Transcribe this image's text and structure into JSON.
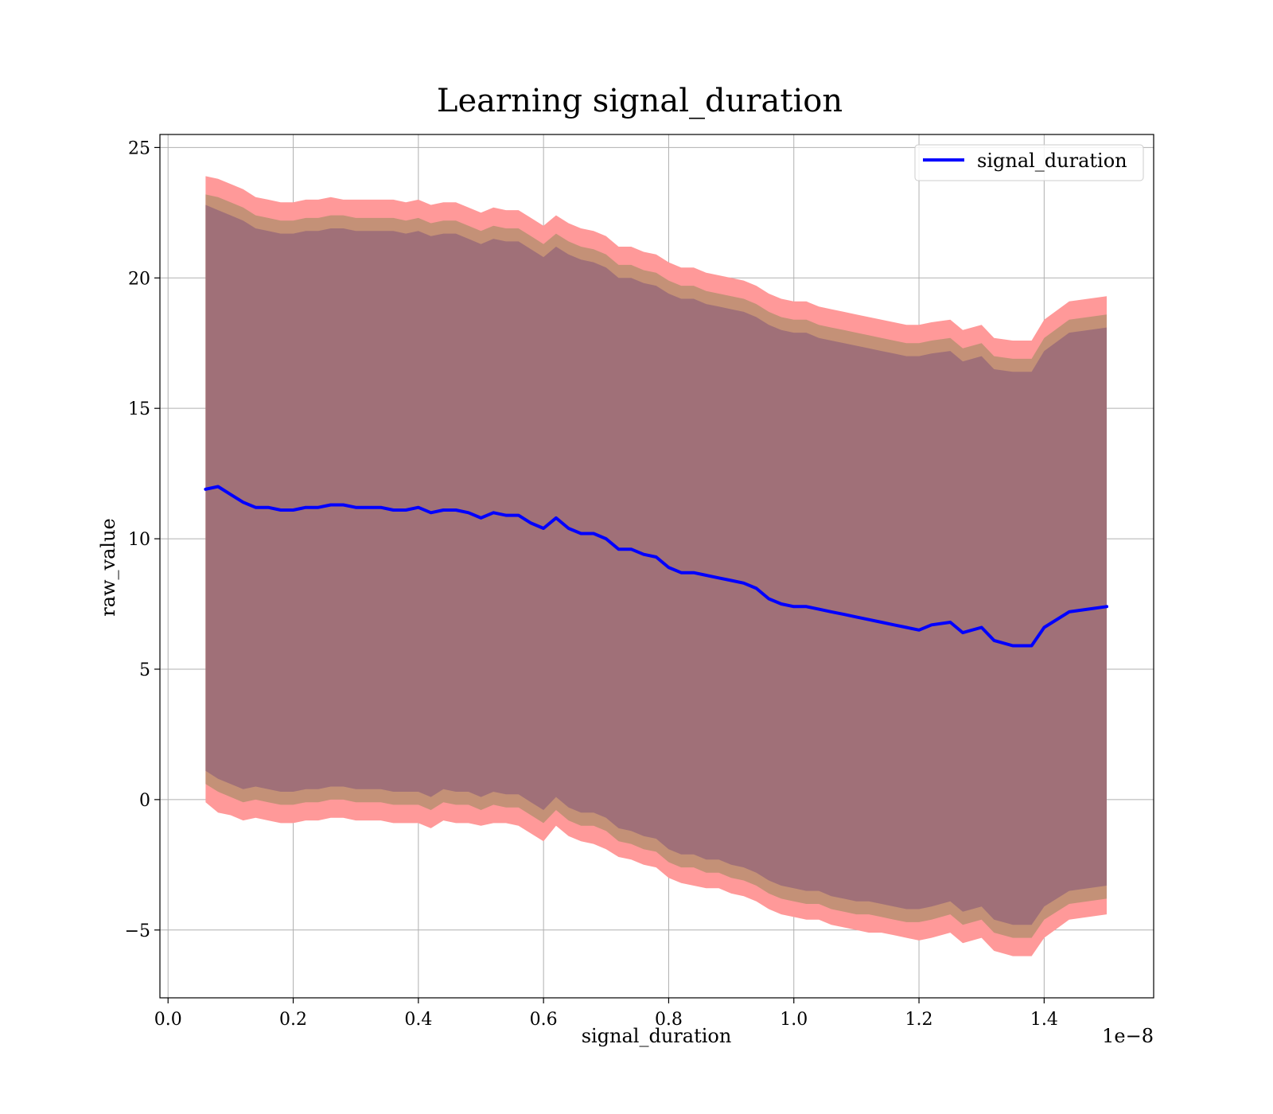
{
  "chart_data": {
    "type": "area",
    "title": "Learning signal_duration",
    "xlabel": "signal_duration",
    "ylabel": "raw_value",
    "x_scale_label": "1e−8",
    "xlim": [
      -0.013,
      1.575
    ],
    "ylim": [
      -7.6,
      25.5
    ],
    "x_ticks": [
      0.0,
      0.2,
      0.4,
      0.6,
      0.8,
      1.0,
      1.2,
      1.4
    ],
    "x_tick_labels": [
      "0.0",
      "0.2",
      "0.4",
      "0.6",
      "0.8",
      "1.0",
      "1.2",
      "1.4"
    ],
    "y_ticks": [
      -5,
      0,
      5,
      10,
      15,
      20,
      25
    ],
    "y_tick_labels": [
      "−5",
      "0",
      "5",
      "10",
      "15",
      "20",
      "25"
    ],
    "grid": true,
    "legend_position": "top-right",
    "colors": {
      "line": "#0000ff",
      "band_outer": "#ff9999",
      "band_middle": "#c49177",
      "band_inner": "#a07078",
      "grid": "#b0b0b0"
    },
    "series": [
      {
        "name": "signal_duration",
        "x": [
          0.06,
          0.08,
          0.1,
          0.12,
          0.14,
          0.16,
          0.18,
          0.2,
          0.22,
          0.24,
          0.26,
          0.28,
          0.3,
          0.32,
          0.34,
          0.36,
          0.38,
          0.4,
          0.42,
          0.44,
          0.46,
          0.48,
          0.5,
          0.52,
          0.54,
          0.56,
          0.58,
          0.6,
          0.62,
          0.64,
          0.66,
          0.68,
          0.7,
          0.72,
          0.74,
          0.76,
          0.78,
          0.8,
          0.82,
          0.84,
          0.86,
          0.88,
          0.9,
          0.92,
          0.94,
          0.96,
          0.98,
          1.0,
          1.02,
          1.04,
          1.06,
          1.08,
          1.1,
          1.12,
          1.14,
          1.16,
          1.18,
          1.2,
          1.22,
          1.25,
          1.27,
          1.3,
          1.32,
          1.35,
          1.38,
          1.4,
          1.44,
          1.5
        ],
        "y": [
          11.9,
          12.0,
          11.7,
          11.4,
          11.2,
          11.2,
          11.1,
          11.1,
          11.2,
          11.2,
          11.3,
          11.3,
          11.2,
          11.2,
          11.2,
          11.1,
          11.1,
          11.2,
          11.0,
          11.1,
          11.1,
          11.0,
          10.8,
          11.0,
          10.9,
          10.9,
          10.6,
          10.4,
          10.8,
          10.4,
          10.2,
          10.2,
          10.0,
          9.6,
          9.6,
          9.4,
          9.3,
          8.9,
          8.7,
          8.7,
          8.6,
          8.5,
          8.4,
          8.3,
          8.1,
          7.7,
          7.5,
          7.4,
          7.4,
          7.3,
          7.2,
          7.1,
          7.0,
          6.9,
          6.8,
          6.7,
          6.6,
          6.5,
          6.7,
          6.8,
          6.4,
          6.6,
          6.1,
          5.9,
          5.9,
          6.6,
          7.2,
          7.4
        ]
      }
    ],
    "bands": [
      {
        "role": "outer",
        "lower": [
          -0.1,
          -0.5,
          -0.6,
          -0.8,
          -0.7,
          -0.8,
          -0.9,
          -0.9,
          -0.8,
          -0.8,
          -0.7,
          -0.7,
          -0.8,
          -0.8,
          -0.8,
          -0.9,
          -0.9,
          -0.9,
          -1.1,
          -0.8,
          -0.9,
          -0.9,
          -1.0,
          -0.9,
          -0.9,
          -1.0,
          -1.3,
          -1.6,
          -1.0,
          -1.4,
          -1.6,
          -1.7,
          -1.9,
          -2.2,
          -2.3,
          -2.5,
          -2.6,
          -3.0,
          -3.2,
          -3.3,
          -3.4,
          -3.4,
          -3.6,
          -3.7,
          -3.9,
          -4.2,
          -4.4,
          -4.5,
          -4.6,
          -4.6,
          -4.8,
          -4.9,
          -5.0,
          -5.1,
          -5.1,
          -5.2,
          -5.3,
          -5.4,
          -5.3,
          -5.1,
          -5.5,
          -5.3,
          -5.8,
          -6.0,
          -6.0,
          -5.3,
          -4.6,
          -4.4
        ],
        "upper": [
          23.9,
          23.8,
          23.6,
          23.4,
          23.1,
          23.0,
          22.9,
          22.9,
          23.0,
          23.0,
          23.1,
          23.0,
          23.0,
          23.0,
          23.0,
          23.0,
          22.9,
          23.0,
          22.8,
          22.9,
          22.9,
          22.7,
          22.5,
          22.7,
          22.6,
          22.6,
          22.3,
          22.0,
          22.4,
          22.1,
          21.9,
          21.8,
          21.6,
          21.2,
          21.2,
          21.0,
          20.9,
          20.6,
          20.4,
          20.4,
          20.2,
          20.1,
          20.0,
          19.9,
          19.7,
          19.4,
          19.2,
          19.1,
          19.1,
          18.9,
          18.8,
          18.7,
          18.6,
          18.5,
          18.4,
          18.3,
          18.2,
          18.2,
          18.3,
          18.4,
          18.0,
          18.2,
          17.7,
          17.6,
          17.6,
          18.4,
          19.1,
          19.3
        ]
      },
      {
        "role": "middle",
        "lower": [
          0.6,
          0.3,
          0.1,
          -0.1,
          0.0,
          -0.1,
          -0.2,
          -0.2,
          -0.1,
          -0.1,
          0.0,
          0.0,
          -0.1,
          -0.1,
          -0.1,
          -0.2,
          -0.2,
          -0.2,
          -0.4,
          -0.1,
          -0.2,
          -0.2,
          -0.4,
          -0.2,
          -0.3,
          -0.3,
          -0.6,
          -0.9,
          -0.4,
          -0.8,
          -1.0,
          -1.0,
          -1.2,
          -1.6,
          -1.7,
          -1.9,
          -2.0,
          -2.4,
          -2.6,
          -2.6,
          -2.8,
          -2.8,
          -3.0,
          -3.1,
          -3.3,
          -3.6,
          -3.8,
          -3.9,
          -4.0,
          -4.0,
          -4.2,
          -4.3,
          -4.4,
          -4.4,
          -4.5,
          -4.6,
          -4.7,
          -4.7,
          -4.6,
          -4.4,
          -4.8,
          -4.6,
          -5.1,
          -5.3,
          -5.3,
          -4.6,
          -4.0,
          -3.8
        ],
        "upper": [
          23.2,
          23.1,
          22.9,
          22.7,
          22.4,
          22.3,
          22.2,
          22.2,
          22.3,
          22.3,
          22.4,
          22.4,
          22.3,
          22.3,
          22.3,
          22.3,
          22.2,
          22.3,
          22.1,
          22.2,
          22.2,
          22.0,
          21.8,
          22.0,
          21.9,
          21.9,
          21.6,
          21.3,
          21.7,
          21.4,
          21.2,
          21.1,
          20.9,
          20.5,
          20.5,
          20.3,
          20.2,
          19.9,
          19.7,
          19.7,
          19.5,
          19.4,
          19.3,
          19.2,
          19.0,
          18.7,
          18.5,
          18.4,
          18.4,
          18.2,
          18.1,
          18.0,
          17.9,
          17.8,
          17.7,
          17.6,
          17.5,
          17.5,
          17.6,
          17.7,
          17.3,
          17.5,
          17.0,
          16.9,
          16.9,
          17.7,
          18.4,
          18.6
        ]
      },
      {
        "role": "inner",
        "lower": [
          1.1,
          0.8,
          0.6,
          0.4,
          0.5,
          0.4,
          0.3,
          0.3,
          0.4,
          0.4,
          0.5,
          0.5,
          0.4,
          0.4,
          0.4,
          0.3,
          0.3,
          0.3,
          0.1,
          0.4,
          0.3,
          0.3,
          0.1,
          0.3,
          0.2,
          0.2,
          -0.1,
          -0.4,
          0.1,
          -0.3,
          -0.5,
          -0.5,
          -0.7,
          -1.1,
          -1.2,
          -1.4,
          -1.5,
          -1.9,
          -2.1,
          -2.1,
          -2.3,
          -2.3,
          -2.5,
          -2.6,
          -2.8,
          -3.1,
          -3.3,
          -3.4,
          -3.5,
          -3.5,
          -3.7,
          -3.8,
          -3.9,
          -3.9,
          -4.0,
          -4.1,
          -4.2,
          -4.2,
          -4.1,
          -3.9,
          -4.3,
          -4.1,
          -4.6,
          -4.8,
          -4.8,
          -4.1,
          -3.5,
          -3.3
        ],
        "upper": [
          22.8,
          22.6,
          22.4,
          22.2,
          21.9,
          21.8,
          21.7,
          21.7,
          21.8,
          21.8,
          21.9,
          21.9,
          21.8,
          21.8,
          21.8,
          21.8,
          21.7,
          21.8,
          21.6,
          21.7,
          21.7,
          21.5,
          21.3,
          21.5,
          21.4,
          21.4,
          21.1,
          20.8,
          21.2,
          20.9,
          20.7,
          20.6,
          20.4,
          20.0,
          20.0,
          19.8,
          19.7,
          19.4,
          19.2,
          19.2,
          19.0,
          18.9,
          18.8,
          18.7,
          18.5,
          18.2,
          18.0,
          17.9,
          17.9,
          17.7,
          17.6,
          17.5,
          17.4,
          17.3,
          17.2,
          17.1,
          17.0,
          17.0,
          17.1,
          17.2,
          16.8,
          17.0,
          16.5,
          16.4,
          16.4,
          17.2,
          17.9,
          18.1
        ]
      }
    ]
  }
}
